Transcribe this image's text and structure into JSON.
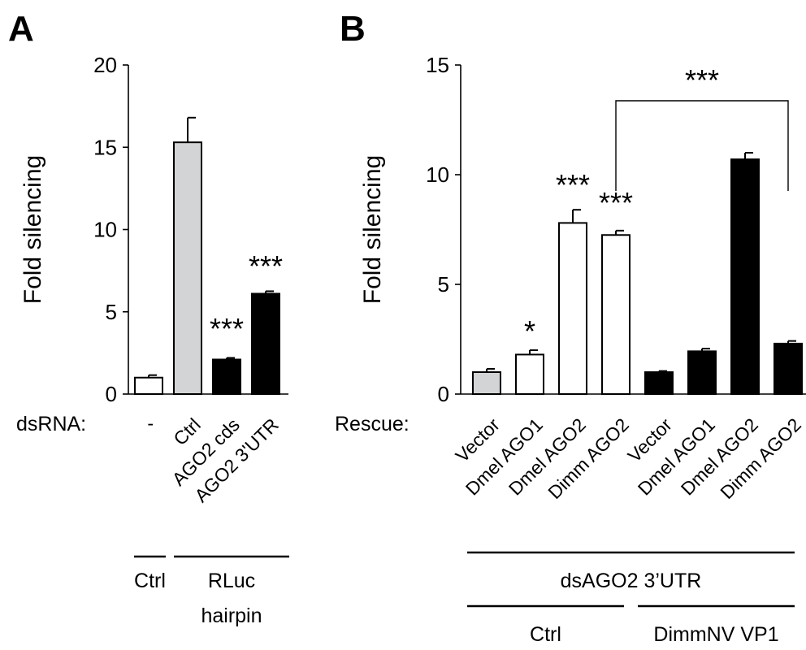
{
  "chart_data": [
    {
      "type": "bar",
      "panel": "A",
      "ylabel": "Fold silencing",
      "ylim": [
        0,
        20
      ],
      "yticks": [
        0,
        5,
        10,
        15,
        20
      ],
      "row_label": "dsRNA:",
      "categories": [
        "-",
        "Ctrl",
        "AGO2 cds",
        "AGO2 3'UTR"
      ],
      "values": [
        1.0,
        15.3,
        2.1,
        6.1
      ],
      "errors": [
        0.15,
        1.5,
        0.1,
        0.15
      ],
      "fills": [
        "#ffffff",
        "#d3d4d6",
        "#000000",
        "#000000"
      ],
      "significance": [
        "",
        "",
        "***",
        "***"
      ],
      "groups": [
        {
          "label_lines": [
            "Ctrl"
          ],
          "from": 0,
          "to": 0
        },
        {
          "label_lines": [
            "RLuc",
            "hairpin"
          ],
          "from": 1,
          "to": 3
        }
      ]
    },
    {
      "type": "bar",
      "panel": "B",
      "ylabel": "Fold silencing",
      "ylim": [
        0,
        15
      ],
      "yticks": [
        0,
        5,
        10,
        15
      ],
      "row_label": "Rescue:",
      "categories": [
        "Vector",
        "Dmel AGO1",
        "Dmel AGO2",
        "Dimm AGO2",
        "Vector",
        "Dmel AGO1",
        "Dmel AGO2",
        "Dimm AGO2"
      ],
      "values": [
        1.0,
        1.8,
        7.8,
        7.25,
        1.0,
        1.95,
        10.7,
        2.3
      ],
      "errors": [
        0.15,
        0.2,
        0.6,
        0.2,
        0.05,
        0.12,
        0.3,
        0.12
      ],
      "fills": [
        "#d3d4d6",
        "#ffffff",
        "#ffffff",
        "#ffffff",
        "#000000",
        "#000000",
        "#000000",
        "#000000"
      ],
      "significance": [
        "",
        "*",
        "***",
        "***",
        "",
        "",
        "",
        ""
      ],
      "bracket": {
        "from": 3,
        "to": 7,
        "label": "***"
      },
      "top_group": {
        "label": "dsAGO2 3’UTR",
        "from": 0,
        "to": 7
      },
      "groups": [
        {
          "label_lines": [
            "Ctrl"
          ],
          "from": 0,
          "to": 3
        },
        {
          "label_lines": [
            "DimmNV VP1"
          ],
          "from": 4,
          "to": 7
        }
      ]
    }
  ]
}
